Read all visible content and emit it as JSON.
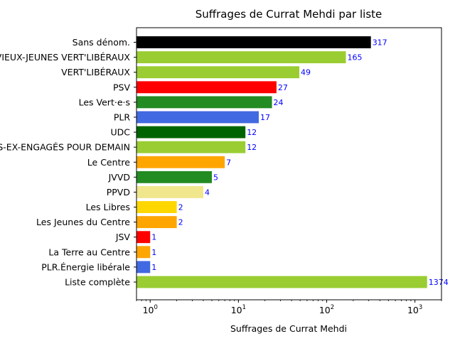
{
  "chart_data": {
    "type": "bar",
    "orientation": "horizontal",
    "title": "Suffrages de Currat Mehdi par liste",
    "xlabel": "Suffrages de Currat Mehdi",
    "ylabel": "",
    "xscale": "log",
    "xlim": [
      0.7,
      2000
    ],
    "xticks": [
      {
        "value": 1,
        "base": "10",
        "exp": "0"
      },
      {
        "value": 10,
        "base": "10",
        "exp": "1"
      },
      {
        "value": 100,
        "base": "10",
        "exp": "2"
      },
      {
        "value": 1000,
        "base": "10",
        "exp": "3"
      }
    ],
    "grid": false,
    "bars": [
      {
        "label": "Sans dénom.",
        "value": 317,
        "value_label": "317",
        "color": "#000000"
      },
      {
        "label": "LES VIEUX-JEUNES VERT'LIBÉRAUX",
        "value": 165,
        "value_label": "165",
        "color": "#9acd32"
      },
      {
        "label": "VERT'LIBÉRAUX",
        "value": 49,
        "value_label": "49",
        "color": "#9acd32"
      },
      {
        "label": "PSV",
        "value": 27,
        "value_label": "27",
        "color": "#ff0000"
      },
      {
        "label": "Les Vert·e·s",
        "value": 24,
        "value_label": "24",
        "color": "#228b22"
      },
      {
        "label": "PLR",
        "value": 17,
        "value_label": "17",
        "color": "#4169e1"
      },
      {
        "label": "UDC",
        "value": 12,
        "value_label": "12",
        "color": "#006400"
      },
      {
        "label": "LES JEUNES VERTS-EX-ENGAGÉS POUR DEMAIN",
        "value": 12,
        "value_label": "12",
        "color": "#9acd32"
      },
      {
        "label": "Le Centre",
        "value": 7,
        "value_label": "7",
        "color": "#ffa500"
      },
      {
        "label": "JVVD",
        "value": 5,
        "value_label": "5",
        "color": "#228b22"
      },
      {
        "label": "PPVD",
        "value": 4,
        "value_label": "4",
        "color": "#f0e68c"
      },
      {
        "label": "Les Libres",
        "value": 2,
        "value_label": "2",
        "color": "#ffd700"
      },
      {
        "label": "Les Jeunes du Centre",
        "value": 2,
        "value_label": "2",
        "color": "#ffa500"
      },
      {
        "label": "JSV",
        "value": 1,
        "value_label": "1",
        "color": "#ff0000"
      },
      {
        "label": "La Terre au Centre",
        "value": 1,
        "value_label": "1",
        "color": "#ffa500"
      },
      {
        "label": "PLR.Énergie libérale",
        "value": 1,
        "value_label": "1",
        "color": "#4169e1"
      },
      {
        "label": "Liste complète",
        "value": 1374,
        "value_label": "1374",
        "color": "#9acd32"
      }
    ]
  }
}
